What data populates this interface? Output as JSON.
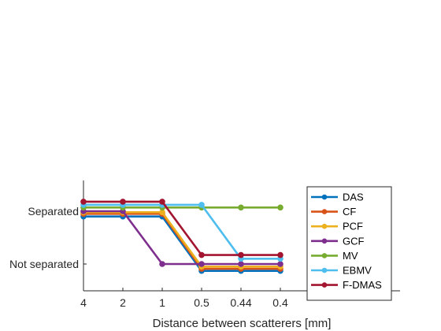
{
  "chart_data": {
    "type": "line",
    "xlabel": "Distance between scatterers [mm]",
    "ylabel": "",
    "categories": [
      "4",
      "2",
      "1",
      "0.5",
      "0.44",
      "0.4"
    ],
    "y_tick_labels": [
      "Not separated",
      "Separated"
    ],
    "y_tick_values": [
      0,
      1
    ],
    "ylim": [
      -0.11,
      1.17
    ],
    "grid": false,
    "legend_position": "right",
    "series": [
      {
        "name": "DAS",
        "color": "#0072BD",
        "values": [
          0.9,
          0.9,
          0.9,
          -0.13,
          -0.13,
          -0.13
        ]
      },
      {
        "name": "CF",
        "color": "#D95319",
        "values": [
          0.95,
          0.95,
          0.95,
          -0.09,
          -0.09,
          -0.09
        ]
      },
      {
        "name": "PCF",
        "color": "#EDB120",
        "values": [
          0.98,
          0.98,
          0.98,
          -0.05,
          -0.05,
          -0.05
        ]
      },
      {
        "name": "GCF",
        "color": "#7E2F8E",
        "values": [
          1.0,
          1.0,
          0.0,
          0.0,
          0.0,
          0.0
        ]
      },
      {
        "name": "MV",
        "color": "#77AC30",
        "values": [
          1.07,
          1.07,
          1.07,
          1.07,
          1.07,
          1.07
        ]
      },
      {
        "name": "EBMV",
        "color": "#4DBEEE",
        "values": [
          1.12,
          1.12,
          1.12,
          1.12,
          0.1,
          0.1
        ]
      },
      {
        "name": "F-DMAS",
        "color": "#A2142F",
        "values": [
          1.18,
          1.18,
          1.18,
          0.17,
          0.17,
          0.17
        ]
      }
    ]
  }
}
